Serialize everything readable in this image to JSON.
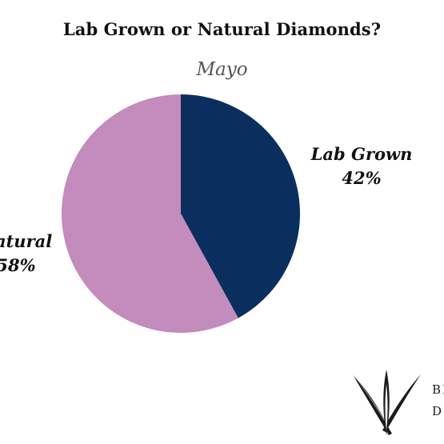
{
  "chart_data": {
    "type": "pie",
    "title": "Lab Grown or Natural Diamonds?",
    "subtitle": "Mayo",
    "slices": [
      {
        "label": "Lab Grown",
        "value": 42,
        "value_label": "42%",
        "color": "#0a2f5e"
      },
      {
        "label": "Natural",
        "value": 58,
        "value_label": "58%",
        "color": "#c48bbd"
      }
    ],
    "start_angle": "12 o'clock",
    "direction": "clockwise",
    "legend": "none"
  },
  "logo": {
    "line1": "BE",
    "line2": "DIA",
    "color": "#1b1b1b"
  }
}
